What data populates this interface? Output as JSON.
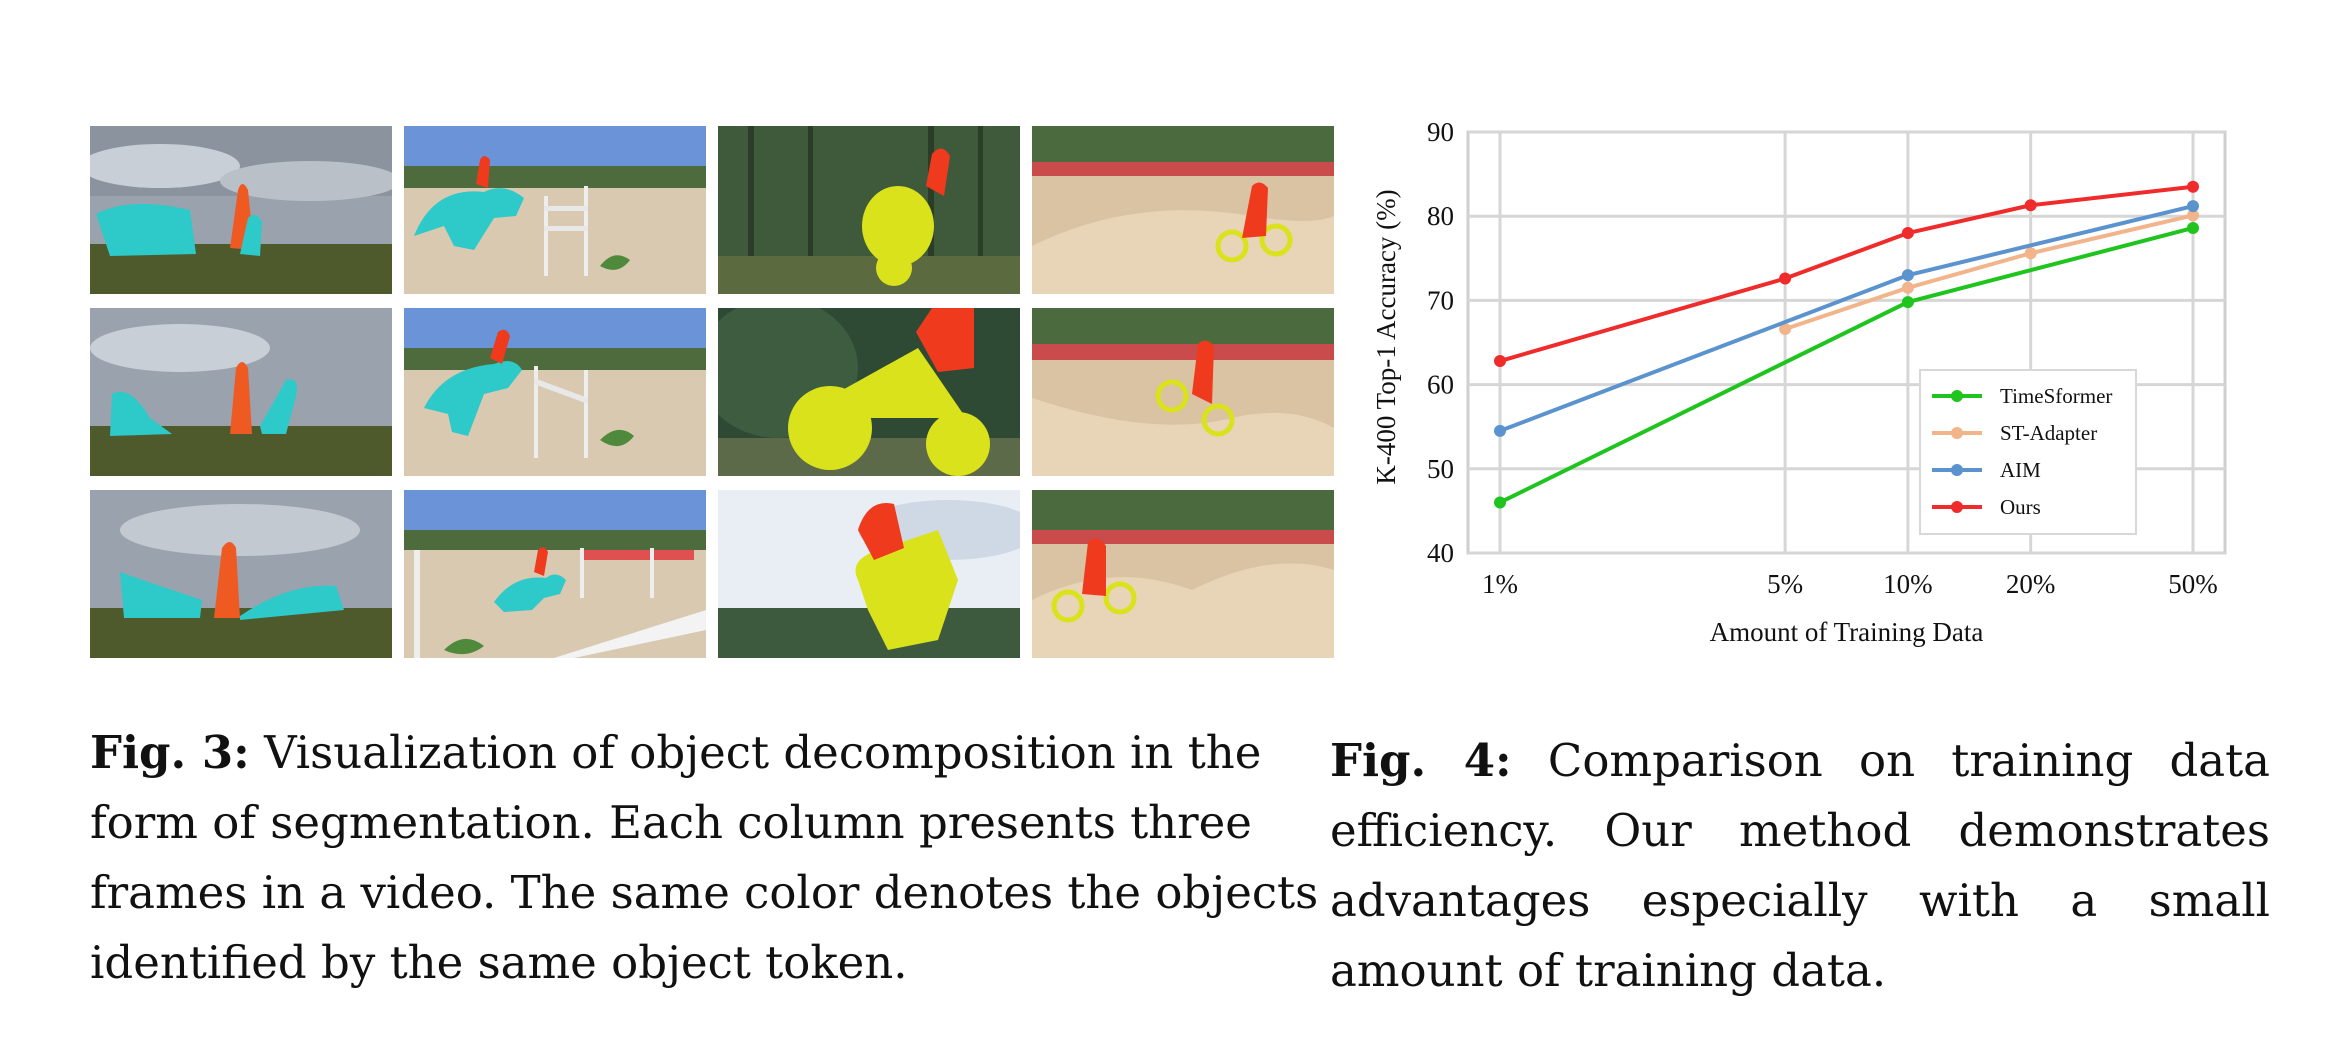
{
  "figure3": {
    "label": "Fig. 3:",
    "caption": "Visualization of object decomposition in the form of segmentation. Each column presents three frames in a video. The same color denotes the objects identified by the same object token.",
    "columns": [
      {
        "scene": "dogs-and-person-on-field",
        "mask_colors": [
          "#2ec9c9",
          "#ef5a23"
        ]
      },
      {
        "scene": "horse-show-jumping",
        "mask_colors": [
          "#2ec9c9",
          "#ef5a23"
        ]
      },
      {
        "scene": "motocross-jump",
        "mask_colors": [
          "#d9e21b",
          "#ef3a1e"
        ]
      },
      {
        "scene": "bmx-track",
        "mask_colors": [
          "#d9e21b",
          "#ef3a1e"
        ]
      }
    ],
    "frames_per_column": 3
  },
  "figure4": {
    "label": "Fig. 4:",
    "caption": "Comparison on training data efficiency. Our method demonstrates advantages especially with a small amount of training data."
  },
  "chart_data": {
    "type": "line",
    "xlabel": "Amount of Training Data",
    "ylabel": "K-400 Top-1 Accuracy (%)",
    "categories": [
      "1%",
      "5%",
      "10%",
      "20%",
      "50%"
    ],
    "x_scale": "log",
    "x_values": [
      1,
      5,
      10,
      20,
      50
    ],
    "ylim": [
      40,
      90
    ],
    "yticks": [
      "40",
      "50",
      "60",
      "70",
      "80",
      "90"
    ],
    "grid": true,
    "legend_position": "lower-right",
    "series": [
      {
        "name": "TimeSformer",
        "color": "#1fc41f",
        "values": [
          46,
          null,
          69.8,
          null,
          78.6
        ]
      },
      {
        "name": "ST-Adapter",
        "color": "#f2b48a",
        "values": [
          null,
          66.6,
          71.5,
          75.6,
          80.1
        ]
      },
      {
        "name": "AIM",
        "color": "#5b93cf",
        "values": [
          54.5,
          null,
          73,
          null,
          81.2
        ]
      },
      {
        "name": "Ours",
        "color": "#ef2b2b",
        "values": [
          62.8,
          72.6,
          78,
          81.3,
          83.5
        ]
      }
    ]
  }
}
